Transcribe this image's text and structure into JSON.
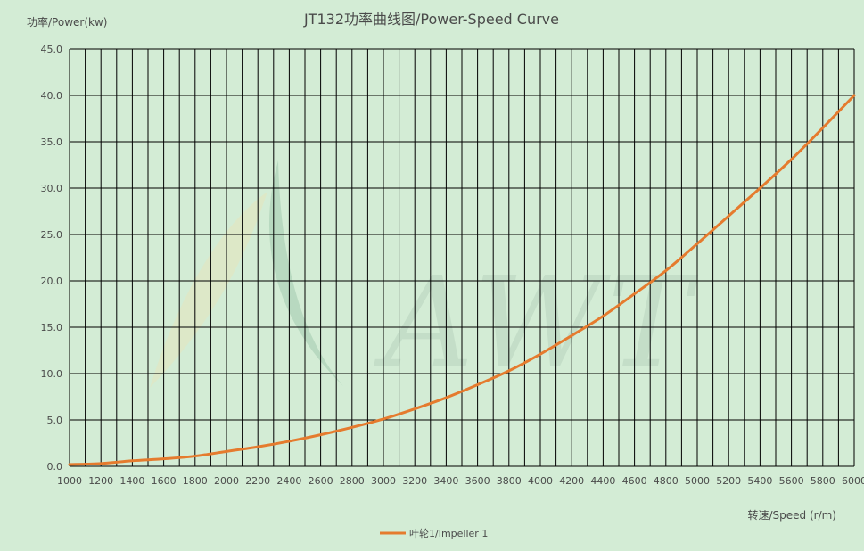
{
  "chart_data": {
    "type": "line",
    "title": "JT132功率曲线图/Power-Speed Curve",
    "ylabel": "功率/Power(kw)",
    "xlabel": "转速/Speed (r/m)",
    "xlim": [
      1000,
      6000
    ],
    "ylim": [
      0,
      45
    ],
    "x_ticks": [
      1000,
      1200,
      1400,
      1600,
      1800,
      2000,
      2200,
      2400,
      2600,
      2800,
      3000,
      3200,
      3400,
      3600,
      3800,
      4000,
      4200,
      4400,
      4600,
      4800,
      5000,
      5200,
      5400,
      5600,
      5800,
      6000
    ],
    "y_ticks": [
      "0.0",
      "5.0",
      "10.0",
      "15.0",
      "20.0",
      "25.0",
      "30.0",
      "35.0",
      "40.0",
      "45.0"
    ],
    "grid": true,
    "legend_position": "bottom",
    "series": [
      {
        "name": "叶轮1/Impeller 1",
        "color": "#e57b2e",
        "x": [
          1000,
          1200,
          1400,
          1600,
          1800,
          2000,
          2200,
          2400,
          2600,
          2800,
          3000,
          3200,
          3400,
          3600,
          3800,
          4000,
          4200,
          4400,
          4600,
          4800,
          5000,
          5200,
          5400,
          5600,
          5800,
          6000
        ],
        "values": [
          0.2,
          0.3,
          0.6,
          0.8,
          1.1,
          1.6,
          2.1,
          2.7,
          3.4,
          4.2,
          5.1,
          6.2,
          7.4,
          8.8,
          10.3,
          12.1,
          14.1,
          16.2,
          18.6,
          21.1,
          24.0,
          27.0,
          30.0,
          33.1,
          36.5,
          40.0
        ]
      }
    ]
  },
  "watermark": {
    "text": "AWT",
    "leaf_colors": [
      "#e3e6bd",
      "#a9d0b3"
    ]
  }
}
